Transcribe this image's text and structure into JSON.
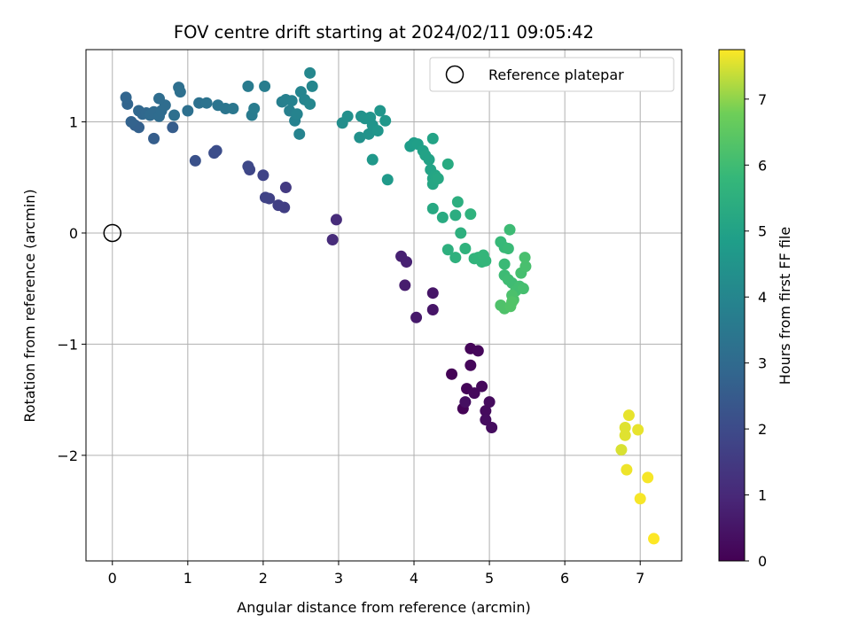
{
  "chart_data": {
    "type": "scatter",
    "title": "FOV centre drift starting at 2024/02/11 09:05:42",
    "xlabel": "Angular distance from reference (arcmin)",
    "ylabel": "Rotation from reference (arcmin)",
    "xlim": [
      -0.35,
      7.55
    ],
    "ylim": [
      -2.95,
      1.65
    ],
    "xticks": [
      0,
      1,
      2,
      3,
      4,
      5,
      6,
      7
    ],
    "yticks": [
      -2,
      -1,
      0,
      1
    ],
    "grid": true,
    "legend": {
      "position": "top-right",
      "entries": [
        "Reference platepar"
      ]
    },
    "reference_point": {
      "x": 0,
      "y": 0
    },
    "colorbar": {
      "label": "Hours from first FF file",
      "range": [
        0,
        7.75
      ],
      "ticks": [
        0,
        1,
        2,
        3,
        4,
        5,
        6,
        7
      ],
      "colormap": "viridis"
    },
    "series": [
      {
        "points": [
          {
            "x": 4.5,
            "y": -1.27,
            "t": 0.05
          },
          {
            "x": 4.65,
            "y": -1.58,
            "t": 0.05
          },
          {
            "x": 4.7,
            "y": -1.4,
            "t": 0.1
          },
          {
            "x": 4.75,
            "y": -1.04,
            "t": 0.1
          },
          {
            "x": 4.85,
            "y": -1.06,
            "t": 0.15
          },
          {
            "x": 4.75,
            "y": -1.19,
            "t": 0.15
          },
          {
            "x": 4.8,
            "y": -1.44,
            "t": 0.2
          },
          {
            "x": 4.9,
            "y": -1.38,
            "t": 0.2
          },
          {
            "x": 4.95,
            "y": -1.6,
            "t": 0.25
          },
          {
            "x": 5.0,
            "y": -1.52,
            "t": 0.25
          },
          {
            "x": 4.95,
            "y": -1.68,
            "t": 0.3
          },
          {
            "x": 5.03,
            "y": -1.75,
            "t": 0.3
          },
          {
            "x": 4.68,
            "y": -1.52,
            "t": 0.35
          },
          {
            "x": 4.25,
            "y": -0.54,
            "t": 0.5
          },
          {
            "x": 4.25,
            "y": -0.69,
            "t": 0.5
          },
          {
            "x": 4.03,
            "y": -0.76,
            "t": 0.6
          },
          {
            "x": 3.88,
            "y": -0.47,
            "t": 0.7
          },
          {
            "x": 3.9,
            "y": -0.26,
            "t": 0.8
          },
          {
            "x": 3.83,
            "y": -0.21,
            "t": 0.8
          },
          {
            "x": 2.97,
            "y": 0.12,
            "t": 1.1
          },
          {
            "x": 2.92,
            "y": -0.06,
            "t": 1.1
          },
          {
            "x": 2.28,
            "y": 0.23,
            "t": 1.6
          },
          {
            "x": 2.3,
            "y": 0.41,
            "t": 1.5
          },
          {
            "x": 2.2,
            "y": 0.25,
            "t": 1.65
          },
          {
            "x": 2.08,
            "y": 0.31,
            "t": 1.7
          },
          {
            "x": 2.03,
            "y": 0.32,
            "t": 1.75
          },
          {
            "x": 2.0,
            "y": 0.52,
            "t": 1.8
          },
          {
            "x": 1.82,
            "y": 0.57,
            "t": 1.85
          },
          {
            "x": 1.8,
            "y": 0.6,
            "t": 1.9
          },
          {
            "x": 1.38,
            "y": 0.74,
            "t": 2.05
          },
          {
            "x": 1.35,
            "y": 0.72,
            "t": 2.1
          },
          {
            "x": 1.1,
            "y": 0.65,
            "t": 2.2
          },
          {
            "x": 0.55,
            "y": 0.85,
            "t": 2.6
          },
          {
            "x": 0.8,
            "y": 0.95,
            "t": 2.55
          },
          {
            "x": 0.35,
            "y": 0.95,
            "t": 2.7
          },
          {
            "x": 0.3,
            "y": 0.97,
            "t": 2.7
          },
          {
            "x": 0.25,
            "y": 1.0,
            "t": 2.75
          },
          {
            "x": 0.2,
            "y": 1.16,
            "t": 2.8
          },
          {
            "x": 0.18,
            "y": 1.22,
            "t": 2.85
          },
          {
            "x": 0.35,
            "y": 1.1,
            "t": 2.9
          },
          {
            "x": 0.4,
            "y": 1.07,
            "t": 2.9
          },
          {
            "x": 0.45,
            "y": 1.08,
            "t": 2.95
          },
          {
            "x": 0.5,
            "y": 1.06,
            "t": 3.0
          },
          {
            "x": 0.55,
            "y": 1.09,
            "t": 3.0
          },
          {
            "x": 0.62,
            "y": 1.05,
            "t": 3.05
          },
          {
            "x": 0.65,
            "y": 1.1,
            "t": 3.05
          },
          {
            "x": 0.7,
            "y": 1.15,
            "t": 3.1
          },
          {
            "x": 0.62,
            "y": 1.21,
            "t": 3.1
          },
          {
            "x": 0.82,
            "y": 1.06,
            "t": 3.15
          },
          {
            "x": 0.88,
            "y": 1.31,
            "t": 3.15
          },
          {
            "x": 0.9,
            "y": 1.27,
            "t": 3.2
          },
          {
            "x": 1.0,
            "y": 1.1,
            "t": 3.2
          },
          {
            "x": 1.15,
            "y": 1.17,
            "t": 3.25
          },
          {
            "x": 1.25,
            "y": 1.17,
            "t": 3.3
          },
          {
            "x": 1.4,
            "y": 1.15,
            "t": 3.35
          },
          {
            "x": 1.5,
            "y": 1.12,
            "t": 3.4
          },
          {
            "x": 1.6,
            "y": 1.12,
            "t": 3.45
          },
          {
            "x": 1.8,
            "y": 1.32,
            "t": 3.6
          },
          {
            "x": 1.85,
            "y": 1.06,
            "t": 3.6
          },
          {
            "x": 1.88,
            "y": 1.12,
            "t": 3.65
          },
          {
            "x": 2.02,
            "y": 1.32,
            "t": 3.7
          },
          {
            "x": 2.25,
            "y": 1.18,
            "t": 3.75
          },
          {
            "x": 2.3,
            "y": 1.2,
            "t": 3.8
          },
          {
            "x": 2.35,
            "y": 1.1,
            "t": 3.8
          },
          {
            "x": 2.38,
            "y": 1.19,
            "t": 3.85
          },
          {
            "x": 2.42,
            "y": 1.01,
            "t": 3.85
          },
          {
            "x": 2.45,
            "y": 1.07,
            "t": 3.9
          },
          {
            "x": 2.48,
            "y": 0.89,
            "t": 3.9
          },
          {
            "x": 2.5,
            "y": 1.27,
            "t": 3.95
          },
          {
            "x": 2.55,
            "y": 1.2,
            "t": 3.95
          },
          {
            "x": 2.62,
            "y": 1.16,
            "t": 4.0
          },
          {
            "x": 2.65,
            "y": 1.32,
            "t": 4.0
          },
          {
            "x": 2.62,
            "y": 1.44,
            "t": 4.05
          },
          {
            "x": 3.05,
            "y": 0.99,
            "t": 4.3
          },
          {
            "x": 3.12,
            "y": 1.05,
            "t": 4.35
          },
          {
            "x": 3.28,
            "y": 0.86,
            "t": 4.4
          },
          {
            "x": 3.3,
            "y": 1.05,
            "t": 4.4
          },
          {
            "x": 3.35,
            "y": 1.03,
            "t": 4.45
          },
          {
            "x": 3.4,
            "y": 0.89,
            "t": 4.45
          },
          {
            "x": 3.42,
            "y": 1.04,
            "t": 4.5
          },
          {
            "x": 3.45,
            "y": 0.97,
            "t": 4.5
          },
          {
            "x": 3.52,
            "y": 0.92,
            "t": 4.55
          },
          {
            "x": 3.55,
            "y": 1.1,
            "t": 4.55
          },
          {
            "x": 3.62,
            "y": 1.01,
            "t": 4.6
          },
          {
            "x": 3.45,
            "y": 0.66,
            "t": 4.65
          },
          {
            "x": 3.65,
            "y": 0.48,
            "t": 4.7
          },
          {
            "x": 3.95,
            "y": 0.78,
            "t": 4.8
          },
          {
            "x": 4.0,
            "y": 0.81,
            "t": 4.85
          },
          {
            "x": 4.05,
            "y": 0.8,
            "t": 4.9
          },
          {
            "x": 4.12,
            "y": 0.74,
            "t": 4.95
          },
          {
            "x": 4.15,
            "y": 0.7,
            "t": 5.0
          },
          {
            "x": 4.2,
            "y": 0.66,
            "t": 5.0
          },
          {
            "x": 4.25,
            "y": 0.85,
            "t": 5.05
          },
          {
            "x": 4.22,
            "y": 0.57,
            "t": 5.05
          },
          {
            "x": 4.25,
            "y": 0.49,
            "t": 5.1
          },
          {
            "x": 4.28,
            "y": 0.52,
            "t": 5.1
          },
          {
            "x": 4.3,
            "y": 0.5,
            "t": 5.15
          },
          {
            "x": 4.25,
            "y": 0.44,
            "t": 5.15
          },
          {
            "x": 4.32,
            "y": 0.49,
            "t": 5.2
          },
          {
            "x": 4.25,
            "y": 0.22,
            "t": 5.25
          },
          {
            "x": 4.38,
            "y": 0.14,
            "t": 5.3
          },
          {
            "x": 4.45,
            "y": 0.62,
            "t": 5.3
          },
          {
            "x": 4.55,
            "y": 0.16,
            "t": 5.4
          },
          {
            "x": 4.58,
            "y": 0.28,
            "t": 5.45
          },
          {
            "x": 4.62,
            "y": 0.0,
            "t": 5.5
          },
          {
            "x": 4.45,
            "y": -0.15,
            "t": 5.5
          },
          {
            "x": 4.55,
            "y": -0.22,
            "t": 5.55
          },
          {
            "x": 4.68,
            "y": -0.14,
            "t": 5.6
          },
          {
            "x": 4.75,
            "y": 0.17,
            "t": 5.6
          },
          {
            "x": 4.8,
            "y": -0.23,
            "t": 5.65
          },
          {
            "x": 4.85,
            "y": -0.22,
            "t": 5.7
          },
          {
            "x": 4.9,
            "y": -0.26,
            "t": 5.7
          },
          {
            "x": 4.92,
            "y": -0.2,
            "t": 5.75
          },
          {
            "x": 4.95,
            "y": -0.25,
            "t": 5.75
          },
          {
            "x": 5.15,
            "y": -0.08,
            "t": 5.85
          },
          {
            "x": 5.2,
            "y": -0.13,
            "t": 5.85
          },
          {
            "x": 5.2,
            "y": -0.28,
            "t": 5.9
          },
          {
            "x": 5.25,
            "y": -0.14,
            "t": 5.9
          },
          {
            "x": 5.27,
            "y": 0.03,
            "t": 5.95
          },
          {
            "x": 5.2,
            "y": -0.38,
            "t": 5.95
          },
          {
            "x": 5.25,
            "y": -0.42,
            "t": 6.0
          },
          {
            "x": 5.3,
            "y": -0.45,
            "t": 6.0
          },
          {
            "x": 5.35,
            "y": -0.52,
            "t": 6.05
          },
          {
            "x": 5.4,
            "y": -0.48,
            "t": 6.05
          },
          {
            "x": 5.45,
            "y": -0.5,
            "t": 6.1
          },
          {
            "x": 5.42,
            "y": -0.36,
            "t": 6.1
          },
          {
            "x": 5.48,
            "y": -0.3,
            "t": 6.15
          },
          {
            "x": 5.47,
            "y": -0.22,
            "t": 6.15
          },
          {
            "x": 5.3,
            "y": -0.56,
            "t": 6.2
          },
          {
            "x": 5.32,
            "y": -0.6,
            "t": 6.2
          },
          {
            "x": 5.15,
            "y": -0.65,
            "t": 6.25
          },
          {
            "x": 5.2,
            "y": -0.68,
            "t": 6.25
          },
          {
            "x": 5.28,
            "y": -0.66,
            "t": 6.3
          },
          {
            "x": 5.3,
            "y": -0.62,
            "t": 6.3
          },
          {
            "x": 6.75,
            "y": -1.95,
            "t": 7.5
          },
          {
            "x": 6.8,
            "y": -1.75,
            "t": 7.55
          },
          {
            "x": 6.8,
            "y": -1.82,
            "t": 7.55
          },
          {
            "x": 6.85,
            "y": -1.64,
            "t": 7.6
          },
          {
            "x": 6.97,
            "y": -1.77,
            "t": 7.6
          },
          {
            "x": 6.82,
            "y": -2.13,
            "t": 7.65
          },
          {
            "x": 7.0,
            "y": -2.39,
            "t": 7.7
          },
          {
            "x": 7.1,
            "y": -2.2,
            "t": 7.7
          },
          {
            "x": 7.18,
            "y": -2.75,
            "t": 7.75
          }
        ]
      }
    ]
  }
}
